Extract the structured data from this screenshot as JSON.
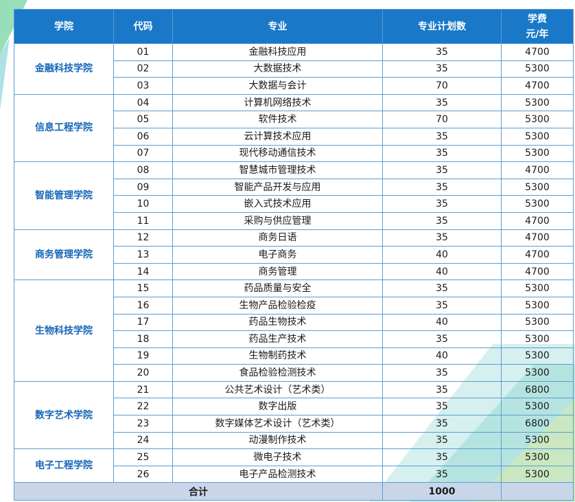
{
  "headers": {
    "college": "学院",
    "code": "代码",
    "major": "专业",
    "quota": "专业计划数",
    "fee_line1": "学费",
    "fee_line2": "元/年"
  },
  "colleges": [
    {
      "name": "金融科技学院",
      "majors": [
        {
          "code": "01",
          "name": "金融科技应用",
          "quota": "35",
          "fee": "4700"
        },
        {
          "code": "02",
          "name": "大数据技术",
          "quota": "35",
          "fee": "5300"
        },
        {
          "code": "03",
          "name": "大数据与会计",
          "quota": "70",
          "fee": "4700"
        }
      ]
    },
    {
      "name": "信息工程学院",
      "majors": [
        {
          "code": "04",
          "name": "计算机网络技术",
          "quota": "35",
          "fee": "5300"
        },
        {
          "code": "05",
          "name": "软件技术",
          "quota": "70",
          "fee": "5300"
        },
        {
          "code": "06",
          "name": "云计算技术应用",
          "quota": "35",
          "fee": "5300"
        },
        {
          "code": "07",
          "name": "现代移动通信技术",
          "quota": "35",
          "fee": "5300"
        }
      ]
    },
    {
      "name": "智能管理学院",
      "majors": [
        {
          "code": "08",
          "name": "智慧城市管理技术",
          "quota": "35",
          "fee": "4700"
        },
        {
          "code": "09",
          "name": "智能产品开发与应用",
          "quota": "35",
          "fee": "5300"
        },
        {
          "code": "10",
          "name": "嵌入式技术应用",
          "quota": "35",
          "fee": "5300"
        },
        {
          "code": "11",
          "name": "采购与供应管理",
          "quota": "35",
          "fee": "4700"
        }
      ]
    },
    {
      "name": "商务管理学院",
      "majors": [
        {
          "code": "12",
          "name": "商务日语",
          "quota": "35",
          "fee": "4700"
        },
        {
          "code": "13",
          "name": "电子商务",
          "quota": "40",
          "fee": "4700"
        },
        {
          "code": "14",
          "name": "商务管理",
          "quota": "40",
          "fee": "4700"
        }
      ]
    },
    {
      "name": "生物科技学院",
      "majors": [
        {
          "code": "15",
          "name": "药品质量与安全",
          "quota": "35",
          "fee": "5300"
        },
        {
          "code": "16",
          "name": "生物产品检验检疫",
          "quota": "35",
          "fee": "5300"
        },
        {
          "code": "17",
          "name": "药品生物技术",
          "quota": "40",
          "fee": "5300"
        },
        {
          "code": "18",
          "name": "药品生产技术",
          "quota": "35",
          "fee": "5300"
        },
        {
          "code": "19",
          "name": "生物制药技术",
          "quota": "40",
          "fee": "5300"
        },
        {
          "code": "20",
          "name": "食品检验检测技术",
          "quota": "35",
          "fee": "5300"
        }
      ]
    },
    {
      "name": "数字艺术学院",
      "majors": [
        {
          "code": "21",
          "name": "公共艺术设计（艺术类）",
          "quota": "35",
          "fee": "6800"
        },
        {
          "code": "22",
          "name": "数字出版",
          "quota": "35",
          "fee": "5300"
        },
        {
          "code": "23",
          "name": "数字媒体艺术设计（艺术类）",
          "quota": "35",
          "fee": "6800"
        },
        {
          "code": "24",
          "name": "动漫制作技术",
          "quota": "35",
          "fee": "5300"
        }
      ]
    },
    {
      "name": "电子工程学院",
      "majors": [
        {
          "code": "25",
          "name": "微电子技术",
          "quota": "35",
          "fee": "5300"
        },
        {
          "code": "26",
          "name": "电子产品检测技术",
          "quota": "35",
          "fee": "5300"
        }
      ]
    }
  ],
  "footer": {
    "label": "合计",
    "total": "1000"
  },
  "colors": {
    "header_bg": "#1a78c8",
    "college_text": "#1567b8",
    "footer_bg": "#c9d6ea",
    "border": "#5a9bd2",
    "deco_green": "#7ed6a8",
    "deco_teal": "#5cc3c8"
  }
}
